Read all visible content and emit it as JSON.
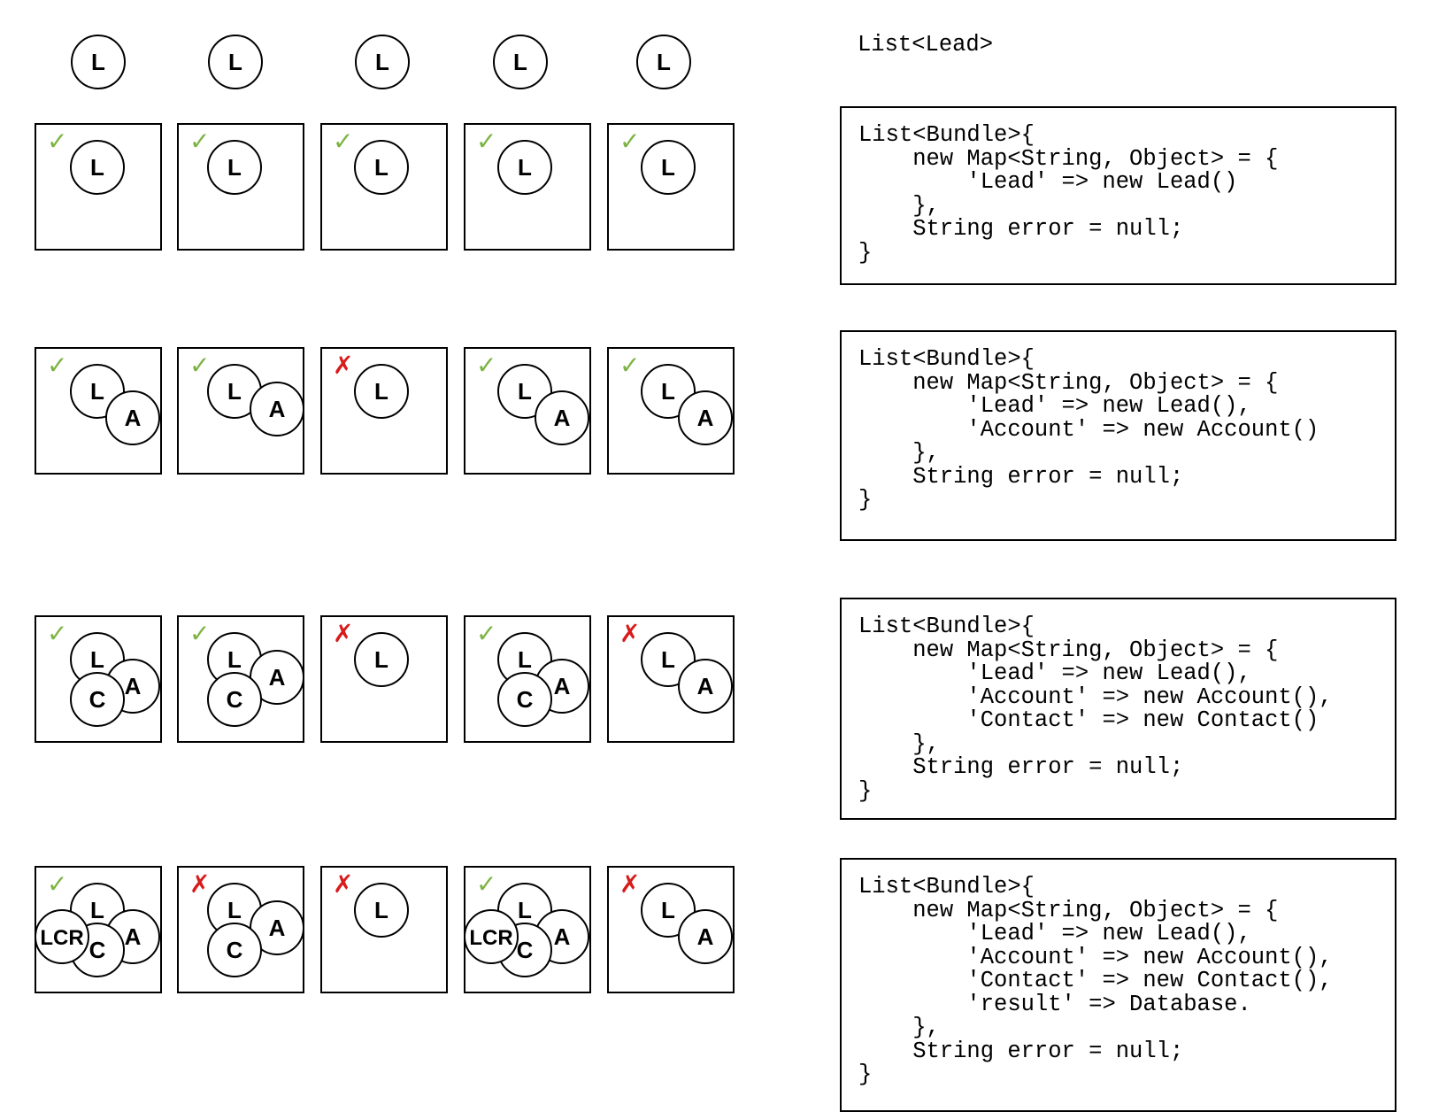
{
  "header_circles": [
    "L",
    "L",
    "L",
    "L",
    "L"
  ],
  "header_code": "List<Lead>",
  "rows": [
    {
      "cells": [
        {
          "status": "check",
          "circles": [
            "L"
          ]
        },
        {
          "status": "check",
          "circles": [
            "L"
          ]
        },
        {
          "status": "check",
          "circles": [
            "L"
          ]
        },
        {
          "status": "check",
          "circles": [
            "L"
          ]
        },
        {
          "status": "check",
          "circles": [
            "L"
          ]
        }
      ],
      "code": "List<Bundle>{\n    new Map<String, Object> = {\n        'Lead' => new Lead()\n    },\n    String error = null;\n}"
    },
    {
      "cells": [
        {
          "status": "check",
          "circles": [
            "L",
            "A"
          ]
        },
        {
          "status": "check",
          "circles": [
            "L",
            "A"
          ]
        },
        {
          "status": "cross",
          "circles": [
            "L"
          ]
        },
        {
          "status": "check",
          "circles": [
            "L",
            "A"
          ]
        },
        {
          "status": "check",
          "circles": [
            "L",
            "A"
          ]
        }
      ],
      "code": "List<Bundle>{\n    new Map<String, Object> = {\n        'Lead' => new Lead(),\n        'Account' => new Account()\n    },\n    String error = null;\n}"
    },
    {
      "cells": [
        {
          "status": "check",
          "circles": [
            "L",
            "A",
            "C"
          ]
        },
        {
          "status": "check",
          "circles": [
            "L",
            "A",
            "C"
          ]
        },
        {
          "status": "cross",
          "circles": [
            "L"
          ]
        },
        {
          "status": "check",
          "circles": [
            "L",
            "A",
            "C"
          ]
        },
        {
          "status": "cross",
          "circles": [
            "L",
            "A"
          ]
        }
      ],
      "code": "List<Bundle>{\n    new Map<String, Object> = {\n        'Lead' => new Lead(),\n        'Account' => new Account(),\n        'Contact' => new Contact()\n    },\n    String error = null;\n}"
    },
    {
      "cells": [
        {
          "status": "check",
          "circles": [
            "L",
            "A",
            "C",
            "LCR"
          ]
        },
        {
          "status": "cross",
          "circles": [
            "L",
            "A",
            "C"
          ]
        },
        {
          "status": "cross",
          "circles": [
            "L"
          ]
        },
        {
          "status": "check",
          "circles": [
            "L",
            "A",
            "C",
            "LCR"
          ]
        },
        {
          "status": "cross",
          "circles": [
            "L",
            "A"
          ]
        }
      ],
      "code": "List<Bundle>{\n    new Map<String, Object> = {\n        'Lead' => new Lead(),\n        'Account' => new Account(),\n        'Contact' => new Contact(),\n        'result' => Database.\n    },\n    String error = null;\n}"
    }
  ],
  "symbols": {
    "check": "✓",
    "cross": "✗"
  },
  "colors": {
    "check": "#7cb342",
    "cross": "#d81b1b",
    "stroke": "#000000",
    "background": "#ffffff"
  }
}
